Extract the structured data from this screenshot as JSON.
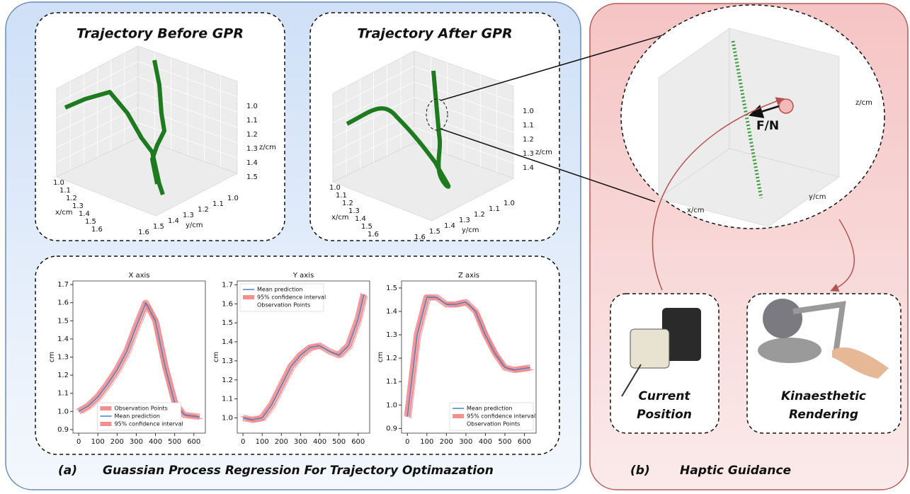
{
  "panel_a": {
    "label": "(a)",
    "caption": "Guassian Process Regression For Trajectory Optimazation",
    "before": {
      "title": "Trajectory Before GPR",
      "x_label": "x/cm",
      "y_label": "y/cm",
      "z_label": "z/cm",
      "x_ticks": [
        "1.0",
        "1.1",
        "1.2",
        "1.3",
        "1.4",
        "1.5",
        "1.6"
      ],
      "y_ticks": [
        "1.6",
        "1.5",
        "1.4",
        "1.3",
        "1.2",
        "1.1",
        "1.0"
      ],
      "z_ticks": [
        "1.0",
        "1.1",
        "1.2",
        "1.3",
        "1.4",
        "1.5"
      ]
    },
    "after": {
      "title": "Trajectory After GPR",
      "x_label": "x/cm",
      "y_label": "y/cm",
      "z_label": "z/cm",
      "x_ticks": [
        "1.0",
        "1.1",
        "1.2",
        "1.3",
        "1.4",
        "1.5",
        "1.6"
      ],
      "y_ticks": [
        "1.6",
        "1.5",
        "1.4",
        "1.3",
        "1.2",
        "1.1",
        "1.0"
      ],
      "z_ticks": [
        "1.0",
        "1.1",
        "1.2",
        "1.3",
        "1.4"
      ]
    }
  },
  "chart_data": [
    {
      "type": "line",
      "title": "X axis",
      "y_label": "cm",
      "x": [
        0,
        50,
        100,
        150,
        200,
        250,
        300,
        350,
        400,
        450,
        500,
        550,
        630
      ],
      "series": [
        {
          "name": "Mean prediction",
          "color": "#4a7fc1",
          "values": [
            1.0,
            1.03,
            1.08,
            1.15,
            1.23,
            1.33,
            1.47,
            1.6,
            1.5,
            1.25,
            1.05,
            0.98,
            0.97
          ]
        }
      ],
      "legend": [
        "Observation Points",
        "Mean prediction",
        "95% confidence interval"
      ],
      "legend_corner": "bottom",
      "band_color": "#f06060",
      "xlim": [
        -30,
        660
      ],
      "xticks": [
        0,
        100,
        200,
        300,
        400,
        500,
        600
      ],
      "ylim": [
        0.88,
        1.72
      ],
      "yticks": [
        0.9,
        {
          "value": 1,
          "label": "1.0"
        },
        1.1,
        1.2,
        1.3,
        1.4,
        1.5,
        1.6,
        1.7
      ]
    },
    {
      "type": "line",
      "title": "Y axis",
      "y_label": "cm",
      "x": [
        0,
        50,
        100,
        150,
        200,
        250,
        300,
        350,
        400,
        450,
        500,
        550,
        600,
        630
      ],
      "series": [
        {
          "name": "Mean prediction",
          "color": "#4a7fc1",
          "values": [
            1.0,
            0.99,
            1.0,
            1.07,
            1.17,
            1.27,
            1.33,
            1.37,
            1.38,
            1.35,
            1.33,
            1.38,
            1.52,
            1.65
          ]
        }
      ],
      "legend": [
        "Mean prediction",
        "95% confidence interval",
        "Observation Points"
      ],
      "legend_corner": "top-left",
      "band_color": "#f06060",
      "xlim": [
        -30,
        660
      ],
      "xticks": [
        0,
        100,
        200,
        300,
        400,
        500,
        600
      ],
      "ylim": [
        0.92,
        1.72
      ],
      "yticks": [
        {
          "value": 1,
          "label": "1.0"
        },
        1.1,
        1.2,
        1.3,
        1.4,
        1.5,
        1.6,
        1.7
      ]
    },
    {
      "type": "line",
      "title": "Z axis",
      "y_label": "cm",
      "x": [
        0,
        50,
        100,
        150,
        200,
        250,
        300,
        350,
        400,
        450,
        500,
        550,
        630
      ],
      "series": [
        {
          "name": "Mean prediction",
          "color": "#4a7fc1",
          "values": [
            0.95,
            1.3,
            1.46,
            1.46,
            1.43,
            1.43,
            1.44,
            1.4,
            1.3,
            1.22,
            1.16,
            1.15,
            1.16
          ]
        }
      ],
      "legend": [
        "Mean prediction",
        "95% confidence interval",
        "Observation Points"
      ],
      "legend_corner": "bottom-right",
      "band_color": "#f06060",
      "xlim": [
        -30,
        660
      ],
      "xticks": [
        0,
        100,
        200,
        300,
        400,
        500,
        600
      ],
      "ylim": [
        0.88,
        1.53
      ],
      "yticks": [
        0.9,
        {
          "value": 1,
          "label": "1.0"
        },
        1.1,
        1.2,
        1.3,
        1.4,
        1.5
      ]
    }
  ],
  "panel_b": {
    "label": "(b)",
    "caption": "Haptic Guidance",
    "x_label": "x/cm",
    "y_label": "y/cm",
    "z_label": "z/cm",
    "force_label": "F/N",
    "current": [
      "Current",
      "Position"
    ],
    "rendering": [
      "Kinaesthetic",
      "Rendering"
    ]
  }
}
